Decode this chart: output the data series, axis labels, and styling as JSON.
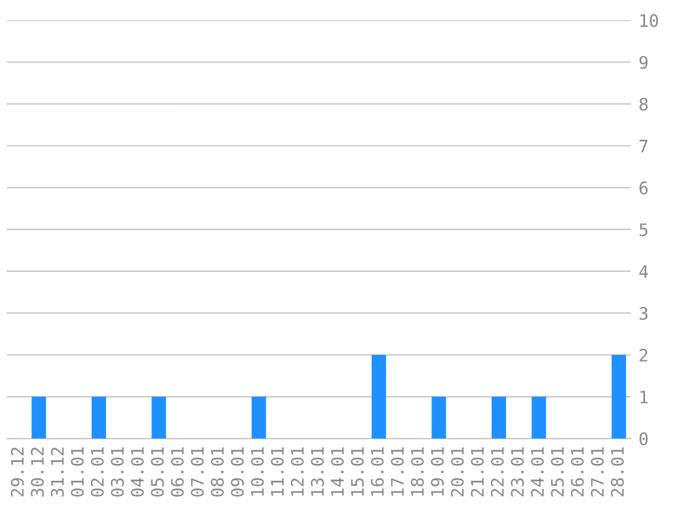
{
  "chart_data": {
    "type": "bar",
    "categories": [
      "29.12",
      "30.12",
      "31.12",
      "01.01",
      "02.01",
      "03.01",
      "04.01",
      "05.01",
      "06.01",
      "07.01",
      "08.01",
      "09.01",
      "10.01",
      "11.01",
      "12.01",
      "13.01",
      "14.01",
      "15.01",
      "16.01",
      "17.01",
      "18.01",
      "19.01",
      "20.01",
      "21.01",
      "22.01",
      "23.01",
      "24.01",
      "25.01",
      "26.01",
      "27.01",
      "28.01"
    ],
    "values": [
      0,
      1,
      0,
      0,
      1,
      0,
      0,
      1,
      0,
      0,
      0,
      0,
      1,
      0,
      0,
      0,
      0,
      0,
      2,
      0,
      0,
      1,
      0,
      0,
      1,
      0,
      1,
      0,
      0,
      0,
      2
    ],
    "color": "#1e90ff",
    "ylim": [
      0,
      10
    ],
    "yticks": [
      0,
      1,
      2,
      3,
      4,
      5,
      6,
      7,
      8,
      9,
      10
    ],
    "grid": "y",
    "legend": false
  }
}
